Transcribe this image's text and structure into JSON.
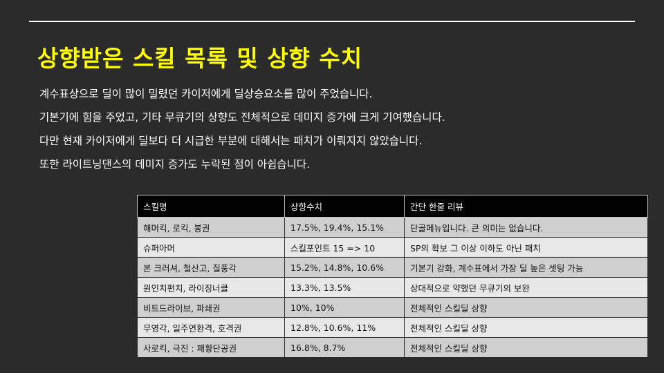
{
  "title": "상향받은 스킬 목록 및 상향 수치",
  "body_lines": [
    "계수표상으로 딜이 많이 밀렸던 카이저에게 딜상승요소를 많이 주었습니다.",
    "기본기에 힘을 주었고, 기타 무큐기의 상향도 전체적으로 데미지 증가에 크게 기여했습니다.",
    "다만 현재 카이저에게 딜보다 더 시급한 부분에 대해서는 패치가 이뤄지지 않았습니다.",
    "또한 라이트닝댄스의 데미지 증가도 누락된 점이 아쉽습니다."
  ],
  "table": {
    "headers": [
      "스킬명",
      "상향수치",
      "간단 한줄 리뷰"
    ],
    "rows": [
      [
        "해머킥, 로킥, 봉권",
        "17.5%, 19.4%, 15.1%",
        "단골메뉴입니다. 큰 의미는 없습니다."
      ],
      [
        "슈퍼아머",
        "스킬포인트 15 => 10",
        "SP의 확보 그 이상 이하도 아닌 패치"
      ],
      [
        "본 크러셔, 철산고, 질풍각",
        "15.2%, 14.8%, 10.6%",
        "기본기 강화, 계수표에서 가장 딜 높은 셋팅 가능"
      ],
      [
        "원인치펀치, 라이징너클",
        "13.3%, 13.5%",
        "상대적으로 약했던 무큐기의 보완"
      ],
      [
        "비트드라이브, 파쇄권",
        "10%, 10%",
        "전체적인 스킬딜 상향"
      ],
      [
        "무영각, 일주연환격, 호격권",
        "12.8%, 10.6%, 11%",
        "전체적인 스킬딜 상향"
      ],
      [
        "사로킥, 극진 : 패황단공권",
        "16.8%, 8.7%",
        "전체적인 스킬딜 상향"
      ]
    ]
  },
  "colors": {
    "background": "#2b2b2b",
    "title": "#ffff00",
    "header_bg": "#000000",
    "row_dark": "#cfcfcf",
    "row_light": "#e8e8e8"
  }
}
